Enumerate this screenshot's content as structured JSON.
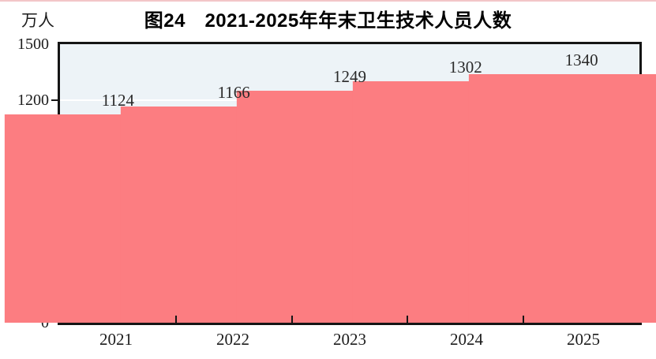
{
  "figure": {
    "title": "图24　2021-2025年年末卫生技术人员人数",
    "unit_label": "万人"
  },
  "chart_data": {
    "type": "bar",
    "title": "图24　2021-2025年年末卫生技术人员人数",
    "categories": [
      "2021",
      "2022",
      "2023",
      "2024",
      "2025"
    ],
    "values": [
      1124,
      1166,
      1249,
      1302,
      1340
    ],
    "xlabel": "",
    "ylabel": "万人",
    "ylim": [
      0,
      1500
    ],
    "yticks": [
      0,
      300,
      600,
      900,
      1200,
      1500
    ],
    "grid": true,
    "gridline_color": "#FFFFFF",
    "legend_position": "none",
    "data_labels_shown": true,
    "bar_color": "#FC7D81",
    "plot_background": "#EDF3F7",
    "axis_color": "#151515",
    "label_color": "#2A2A2A"
  }
}
